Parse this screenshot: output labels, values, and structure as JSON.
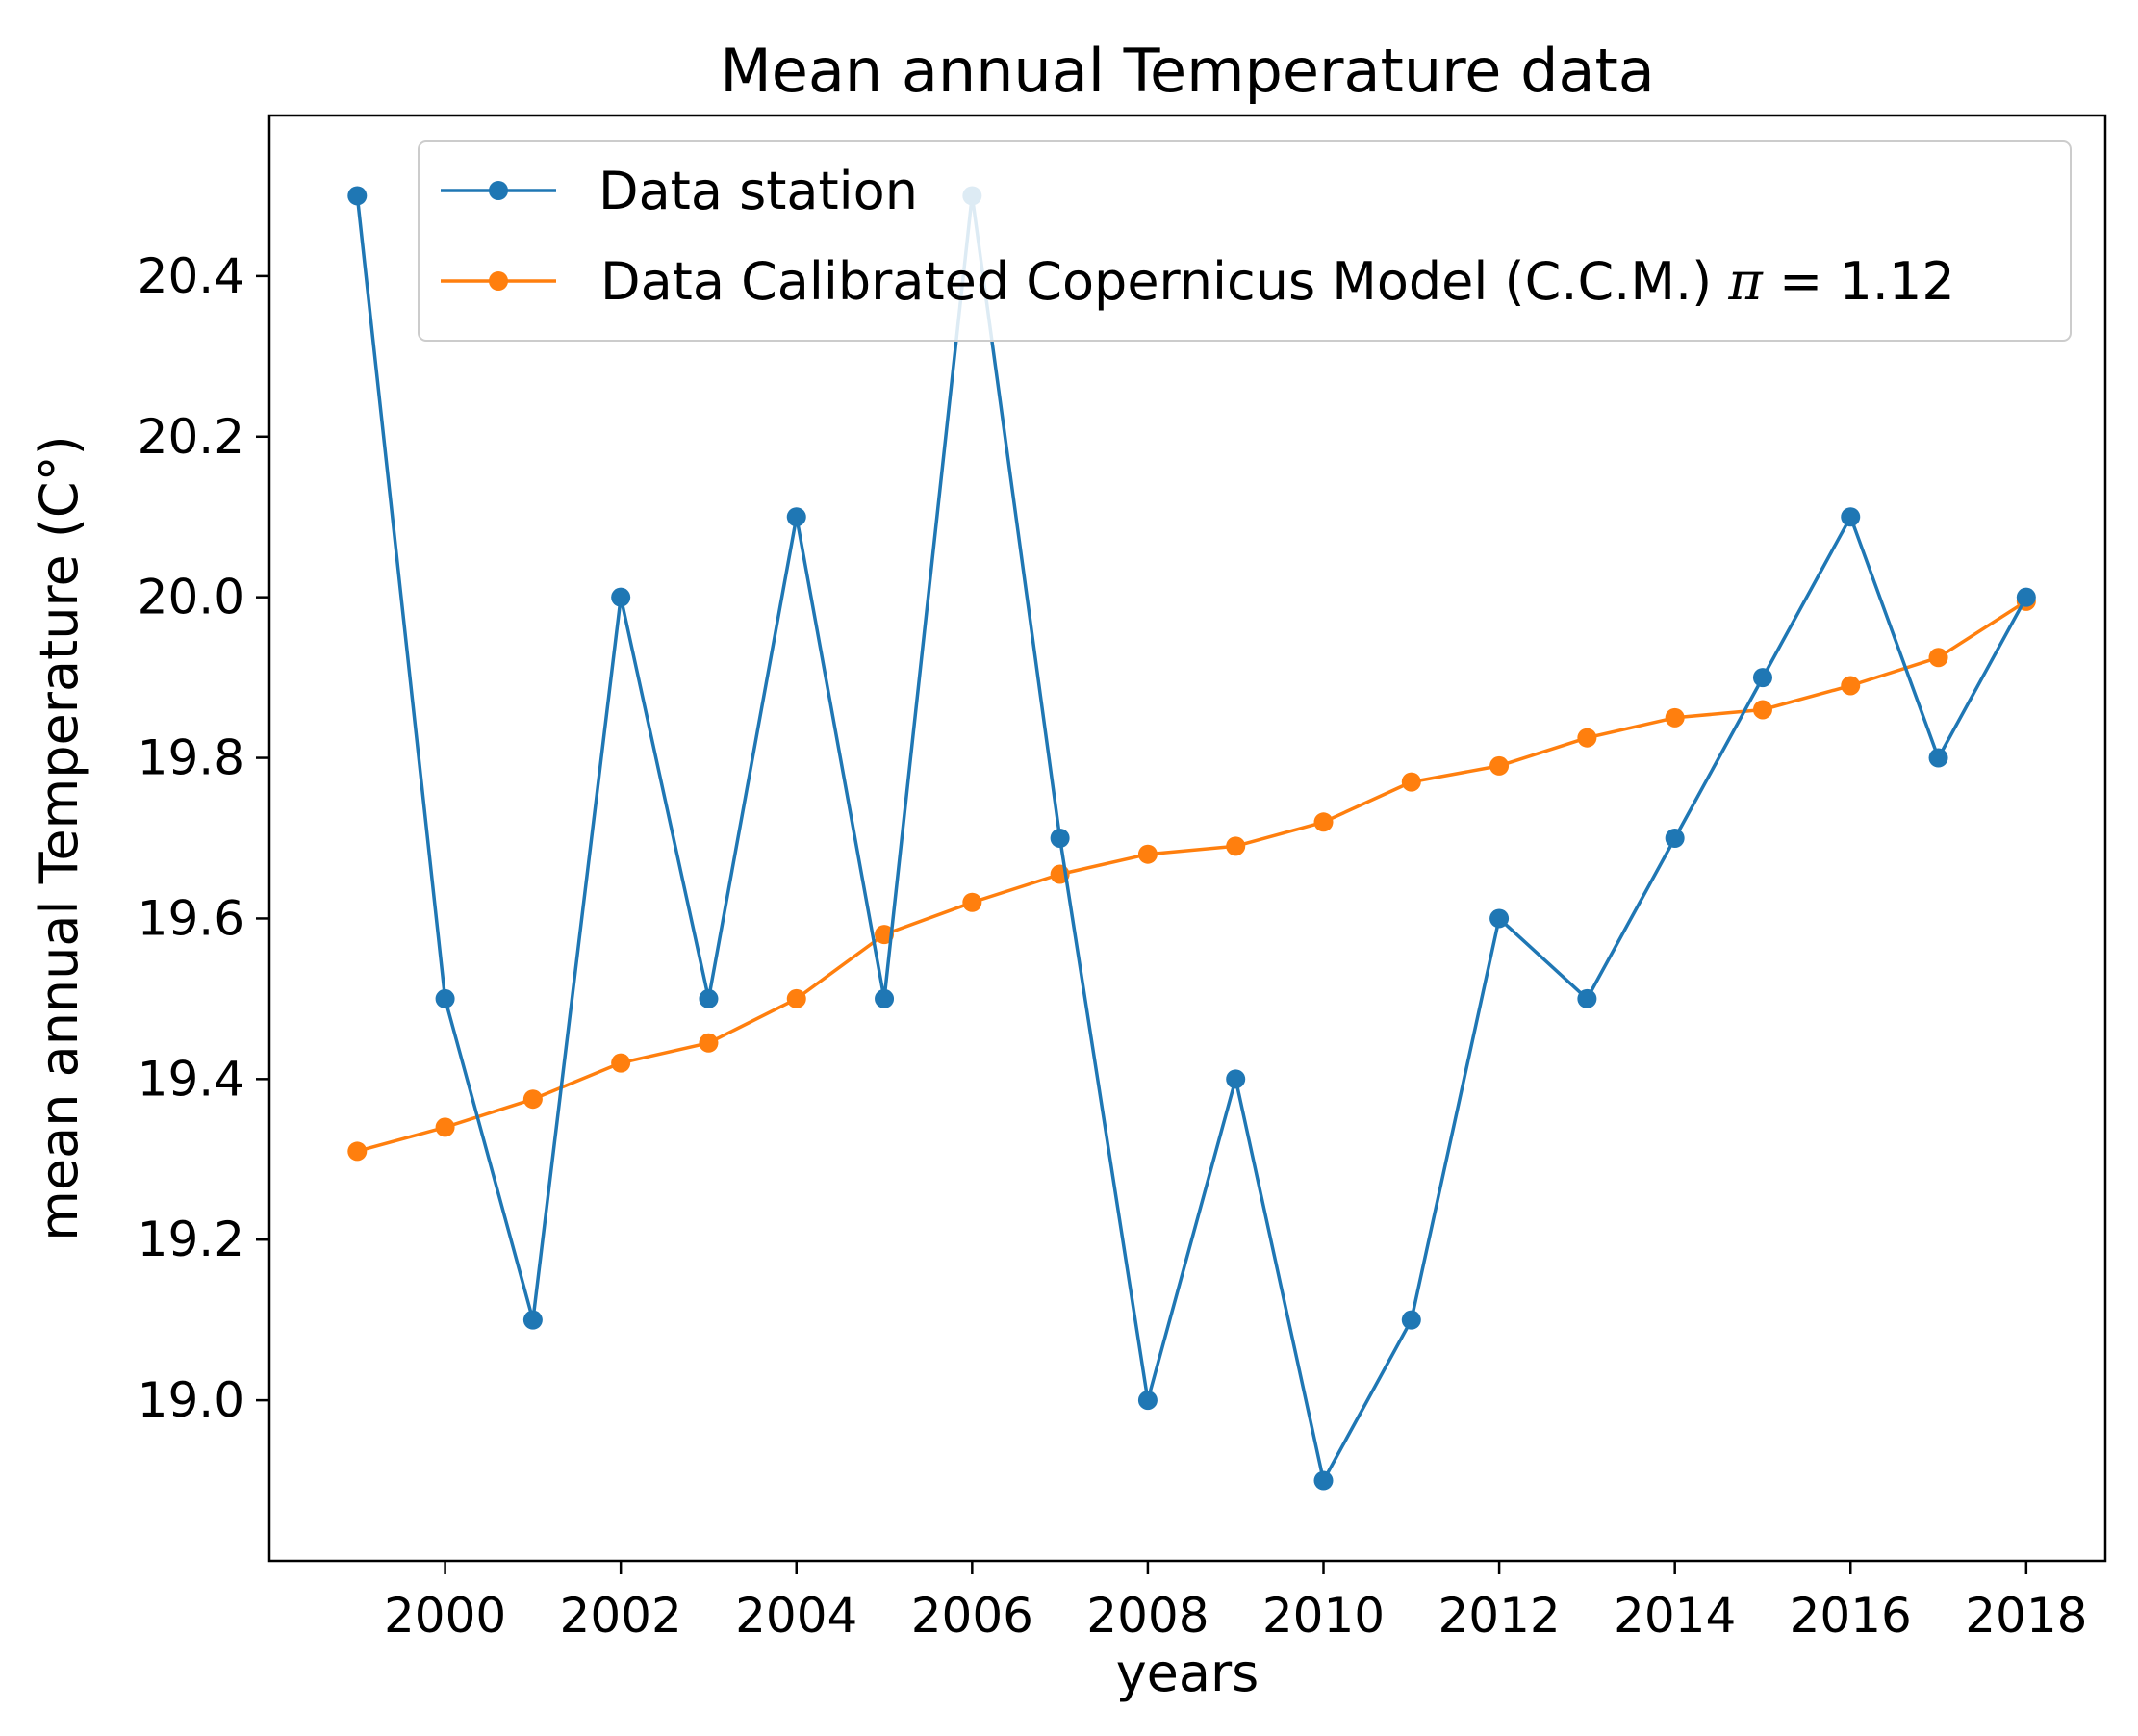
{
  "chart_data": {
    "type": "line",
    "title": "Mean annual Temperature data",
    "xlabel": "years",
    "ylabel": "mean annual Temperature (C°)",
    "xlim": [
      1998.0,
      2018.9
    ],
    "ylim": [
      18.8,
      20.6
    ],
    "xticks": [
      2000,
      2002,
      2004,
      2006,
      2008,
      2010,
      2012,
      2014,
      2016,
      2018
    ],
    "yticks": [
      19.0,
      19.2,
      19.4,
      19.6,
      19.8,
      20.0,
      20.2,
      20.4
    ],
    "xtick_labels": [
      "2000",
      "2002",
      "2004",
      "2006",
      "2008",
      "2010",
      "2012",
      "2014",
      "2016",
      "2018"
    ],
    "ytick_labels": [
      "19.0",
      "19.2",
      "19.4",
      "19.6",
      "19.8",
      "20.0",
      "20.2",
      "20.4"
    ],
    "legend_position": "top-right",
    "x": [
      1999,
      2000,
      2001,
      2002,
      2003,
      2004,
      2005,
      2006,
      2007,
      2008,
      2009,
      2010,
      2011,
      2012,
      2013,
      2014,
      2015,
      2016,
      2017,
      2018
    ],
    "series": [
      {
        "name": "Data station",
        "legend_label": "Data station",
        "color": "#1f77b4",
        "values": [
          20.5,
          19.5,
          19.1,
          20.0,
          19.5,
          20.1,
          19.5,
          20.5,
          19.7,
          19.0,
          19.4,
          18.9,
          19.1,
          19.6,
          19.5,
          19.7,
          19.9,
          20.1,
          19.8,
          20.0
        ]
      },
      {
        "name": "Data Calibrated Copernicus Model (C.C.M.) π = 1.12",
        "legend_label": "Data Calibrated Copernicus Model (C.C.M.)",
        "legend_pi_symbol": "π",
        "legend_pi_eq": "= 1.12",
        "color": "#ff7f0e",
        "values": [
          19.31,
          19.34,
          19.375,
          19.42,
          19.445,
          19.5,
          19.58,
          19.62,
          19.655,
          19.68,
          19.69,
          19.72,
          19.77,
          19.79,
          19.825,
          19.85,
          19.86,
          19.89,
          19.925,
          19.995
        ]
      }
    ]
  }
}
